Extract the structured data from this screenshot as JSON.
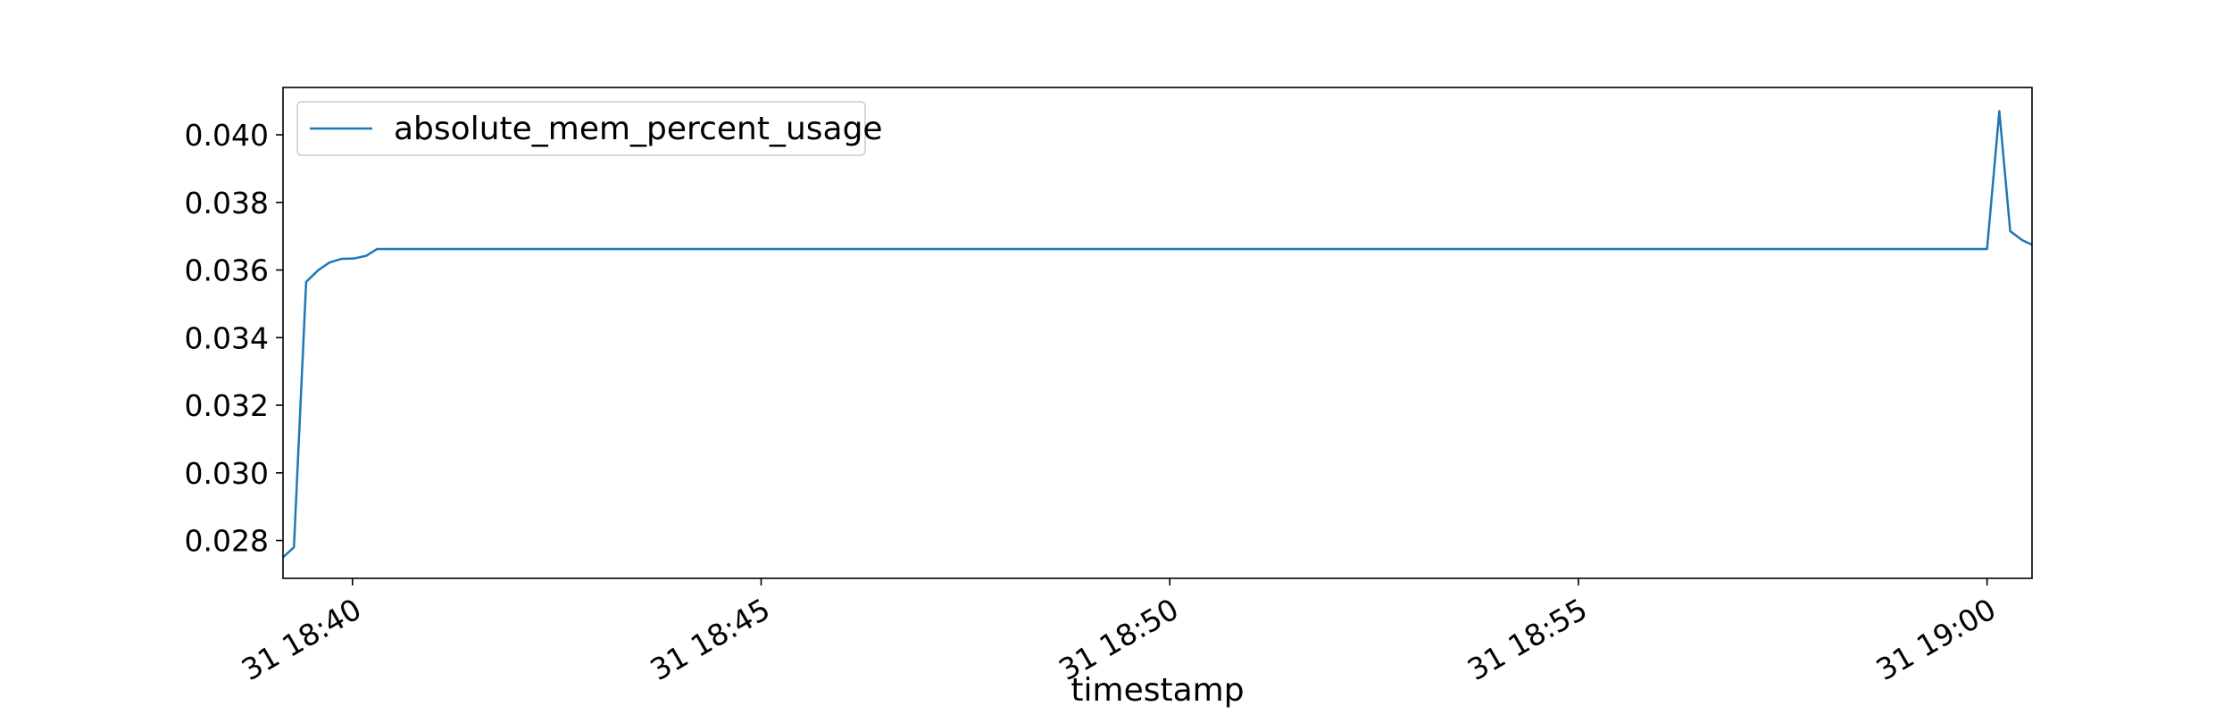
{
  "chart_data": {
    "type": "line",
    "title": "",
    "xlabel": "timestamp",
    "ylabel": "",
    "legend": {
      "location": "upper left",
      "entries": [
        "absolute_mem_percent_usage"
      ]
    },
    "grid": false,
    "colors": {
      "series": "#1f77b4",
      "axes": "#000000",
      "background": "#ffffff"
    },
    "xlim": [
      "18:39:09",
      "19:00:33"
    ],
    "ylim": [
      0.02688,
      0.0414
    ],
    "x_ticks": [
      {
        "time": "18:40:00",
        "label": "31 18:40"
      },
      {
        "time": "18:45:00",
        "label": "31 18:45"
      },
      {
        "time": "18:50:00",
        "label": "31 18:50"
      },
      {
        "time": "18:55:00",
        "label": "31 18:55"
      },
      {
        "time": "19:00:00",
        "label": "31 19:00"
      }
    ],
    "y_ticks": [
      {
        "value": 0.028,
        "label": "0.028"
      },
      {
        "value": 0.03,
        "label": "0.030"
      },
      {
        "value": 0.032,
        "label": "0.032"
      },
      {
        "value": 0.034,
        "label": "0.034"
      },
      {
        "value": 0.036,
        "label": "0.036"
      },
      {
        "value": 0.038,
        "label": "0.038"
      },
      {
        "value": 0.04,
        "label": "0.040"
      }
    ],
    "series": [
      {
        "name": "absolute_mem_percent_usage",
        "color": "#1f77b4",
        "points": [
          [
            "18:39:09",
            0.0275
          ],
          [
            "18:39:17",
            0.0278
          ],
          [
            "18:39:26",
            0.03565
          ],
          [
            "18:39:35",
            0.036
          ],
          [
            "18:39:43",
            0.03622
          ],
          [
            "18:39:52",
            0.03633
          ],
          [
            "18:40:01",
            0.03634
          ],
          [
            "18:40:10",
            0.03642
          ],
          [
            "18:40:18",
            0.03662
          ],
          [
            "18:45:00",
            0.03662
          ],
          [
            "18:50:00",
            0.03662
          ],
          [
            "18:55:00",
            0.03662
          ],
          [
            "19:00:00",
            0.03662
          ],
          [
            "19:00:09",
            0.0407
          ],
          [
            "19:00:17",
            0.03715
          ],
          [
            "19:00:26",
            0.03688
          ],
          [
            "19:00:33",
            0.03675
          ]
        ]
      }
    ]
  }
}
